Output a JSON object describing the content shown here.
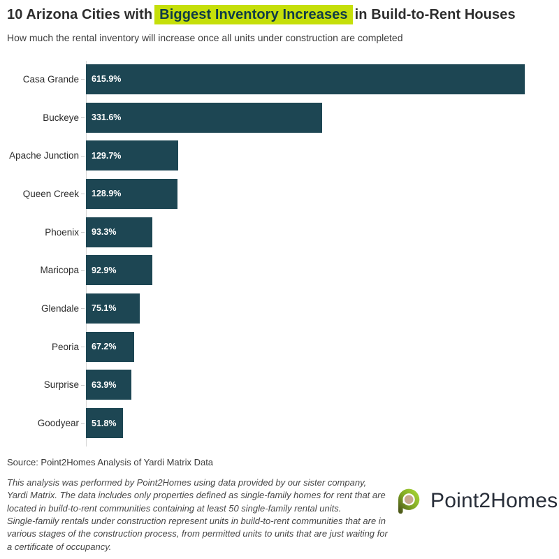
{
  "header": {
    "title_prefix": "10 Arizona Cities with",
    "title_highlight": "Biggest Inventory Increases",
    "title_suffix": "in Build-to-Rent Houses",
    "subtitle": "How much the rental inventory will increase once all units under construction are completed"
  },
  "chart_data": {
    "type": "bar",
    "orientation": "horizontal",
    "title": "10 Arizona Cities with Biggest Inventory Increases in Build-to-Rent Houses",
    "subtitle": "How much the rental inventory will increase once all units under construction are completed",
    "categories": [
      "Casa Grande",
      "Buckeye",
      "Apache Junction",
      "Queen Creek",
      "Phoenix",
      "Maricopa",
      "Glendale",
      "Peoria",
      "Surprise",
      "Goodyear"
    ],
    "values": [
      615.9,
      331.6,
      129.7,
      128.9,
      93.3,
      92.9,
      75.1,
      67.2,
      63.9,
      51.8
    ],
    "value_labels": [
      "615.9%",
      "331.6%",
      "129.7%",
      "128.9%",
      "93.3%",
      "92.9%",
      "75.1%",
      "67.2%",
      "63.9%",
      "51.8%"
    ],
    "xlim": [
      0,
      615.9
    ],
    "xlabel": "",
    "ylabel": "",
    "grid": false,
    "legend": false,
    "bar_color": "#1d4653",
    "value_label_color": "#ffffff"
  },
  "footer": {
    "source": "Source: Point2Homes Analysis of Yardi Matrix Data",
    "note1": "This analysis was performed by Point2Homes using data provided by our sister company, Yardi Matrix. The data includes only properties defined as single-family homes for rent that are located in build-to-rent communities containing at least 50 single-family rental units.",
    "note2": "Single-family rentals under construction represent units in build-to-rent communities that are in various stages of the construction process, from permitted units to units that are just waiting for a certificate of occupancy.",
    "logo_text": "Point2Homes"
  },
  "colors": {
    "highlight_bg": "#c5df0a",
    "highlight_text": "#0e3a47",
    "bar": "#1d4653",
    "axis_line": "#d6d6d6",
    "logo_green_bright": "#a6d435",
    "logo_green_mid": "#7fa524",
    "logo_green_dark": "#4e5a1a",
    "logo_center_tan": "#c7a78c",
    "logo_text_color": "#272d38"
  }
}
